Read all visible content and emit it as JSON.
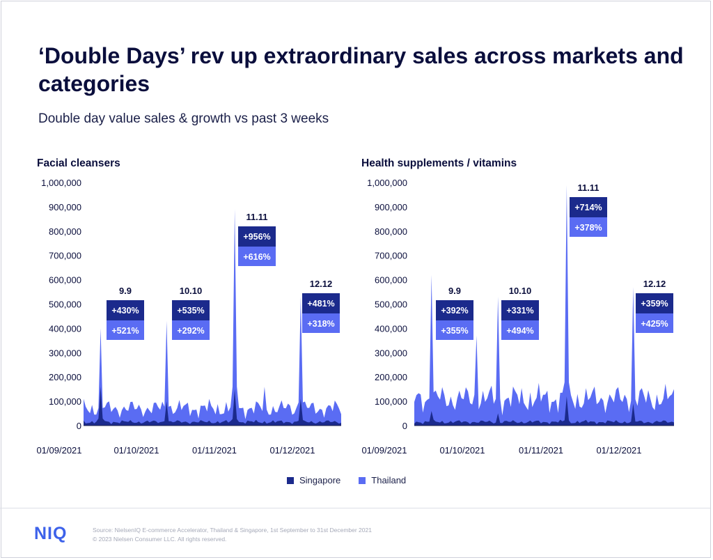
{
  "header": {
    "title": "‘Double Days’ rev up extraordinary sales across markets and categories",
    "subtitle": "Double day value sales & growth vs past 3 weeks"
  },
  "colors": {
    "singapore": "#1b2a8c",
    "thailand": "#5a6cf3",
    "box_dark": "#1b2a8c",
    "box_light": "#5a6cf3",
    "text": "#0a0e3c"
  },
  "legend": [
    {
      "name": "Singapore",
      "color": "#1b2a8c"
    },
    {
      "name": "Thailand",
      "color": "#5a6cf3"
    }
  ],
  "chart_data": [
    {
      "type": "area",
      "title": "Facial cleansers",
      "ylim": [
        0,
        1000000
      ],
      "y_ticks": [
        "1,000,000",
        "900,000",
        "800,000",
        "700,000",
        "600,000",
        "500,000",
        "400,000",
        "300,000",
        "200,000",
        "100,000",
        "0"
      ],
      "x_ticks": [
        "01/09/2021",
        "01/10/2021",
        "01/11/2021",
        "01/12/2021"
      ],
      "x_range": [
        "2021-09-01",
        "2021-12-31"
      ],
      "series": [
        {
          "name": "Thailand",
          "spikes": [
            [
              "2021-09-09",
              400000
            ],
            [
              "2021-10-10",
              430000
            ],
            [
              "2021-11-11",
              890000
            ],
            [
              "2021-11-25",
              160000
            ],
            [
              "2021-12-12",
              530000
            ]
          ],
          "baseline": 70000
        },
        {
          "name": "Singapore",
          "spikes": [
            [
              "2021-09-09",
              160000
            ],
            [
              "2021-10-10",
              100000
            ],
            [
              "2021-11-11",
              150000
            ],
            [
              "2021-12-12",
              110000
            ]
          ],
          "baseline": 15000
        }
      ],
      "annotations": [
        {
          "label": "9.9",
          "singapore": "+430%",
          "thailand": "+521%"
        },
        {
          "label": "10.10",
          "singapore": "+535%",
          "thailand": "+292%"
        },
        {
          "label": "11.11",
          "singapore": "+956%",
          "thailand": "+616%"
        },
        {
          "label": "12.12",
          "singapore": "+481%",
          "thailand": "+318%"
        }
      ]
    },
    {
      "type": "area",
      "title": "Health supplements / vitamins",
      "ylim": [
        0,
        1000000
      ],
      "y_ticks": [
        "1,000,000",
        "900,000",
        "800,000",
        "700,000",
        "600,000",
        "500,000",
        "400,000",
        "300,000",
        "200,000",
        "100,000",
        "0"
      ],
      "x_ticks": [
        "01/09/2021",
        "01/10/2021",
        "01/11/2021",
        "01/12/2021"
      ],
      "x_range": [
        "2021-09-01",
        "2021-12-31"
      ],
      "series": [
        {
          "name": "Thailand",
          "spikes": [
            [
              "2021-09-09",
              620000
            ],
            [
              "2021-09-30",
              370000
            ],
            [
              "2021-10-10",
              530000
            ],
            [
              "2021-11-11",
              990000
            ],
            [
              "2021-12-12",
              570000
            ]
          ],
          "baseline": 110000
        },
        {
          "name": "Singapore",
          "spikes": [
            [
              "2021-09-09",
              60000
            ],
            [
              "2021-10-10",
              50000
            ],
            [
              "2021-11-11",
              120000
            ],
            [
              "2021-12-12",
              90000
            ]
          ],
          "baseline": 15000
        }
      ],
      "annotations": [
        {
          "label": "9.9",
          "singapore": "+392%",
          "thailand": "+355%"
        },
        {
          "label": "10.10",
          "singapore": "+331%",
          "thailand": "+494%"
        },
        {
          "label": "11.11",
          "singapore": "+714%",
          "thailand": "+378%"
        },
        {
          "label": "12.12",
          "singapore": "+359%",
          "thailand": "+425%"
        }
      ]
    }
  ],
  "footer": {
    "logo": "NIQ",
    "source_line1": "Source: NielsenIQ E-commerce Accelerator, Thailand & Singapore, 1st September to 31st December 2021",
    "source_line2": "© 2023 Nielsen Consumer LLC. All rights reserved."
  }
}
